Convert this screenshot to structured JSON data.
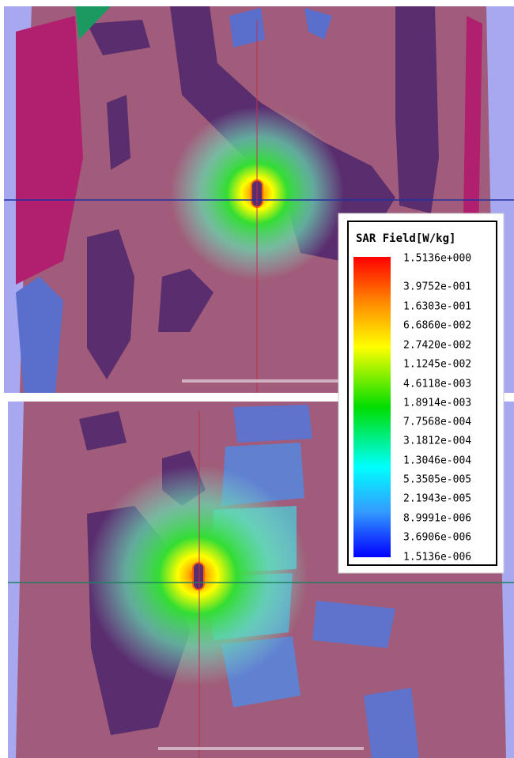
{
  "legend": {
    "title": "SAR Field[W/kg]",
    "labels": [
      "1.5136e+000",
      "3.9752e-001",
      "1.6303e-001",
      "6.6860e-002",
      "2.7420e-002",
      "1.1245e-002",
      "4.6118e-003",
      "1.8914e-003",
      "7.7568e-004",
      "3.1812e-004",
      "1.3046e-004",
      "5.3505e-005",
      "2.1943e-005",
      "8.9991e-006",
      "3.6906e-006",
      "1.5136e-006"
    ]
  }
}
